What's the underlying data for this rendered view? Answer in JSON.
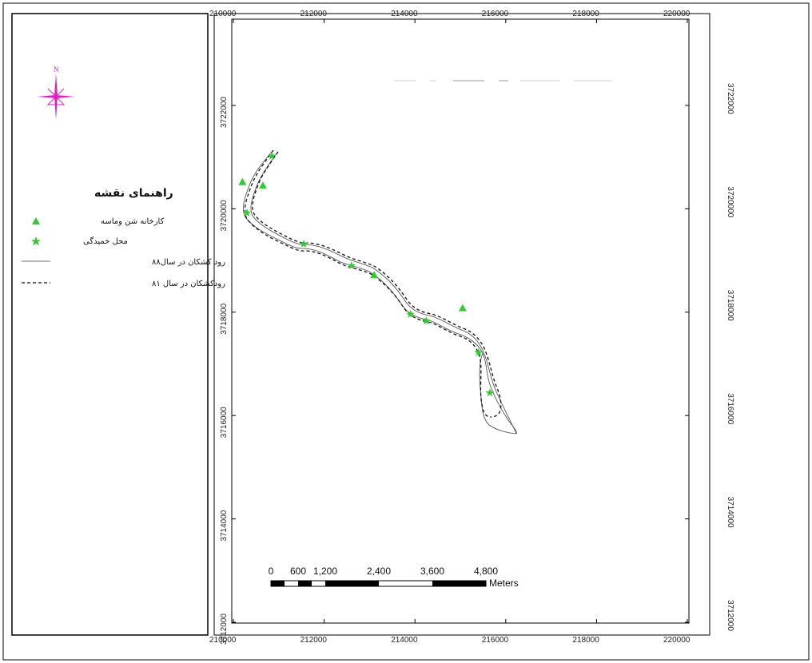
{
  "map": {
    "north_label": "N",
    "legend": {
      "title": "راهنمای نقشه",
      "items": [
        {
          "label": "کارخانه شن وماسه",
          "symbol": "green-triangle"
        },
        {
          "label": "محل خمیدگی",
          "symbol": "green-star"
        },
        {
          "label": "رود کشکان در سال۸۸",
          "symbol": "thin-solid-line"
        },
        {
          "label": "رودکشکان در سال ۸۱",
          "symbol": "dashed-line"
        }
      ]
    },
    "x_axis": {
      "ticks": [
        210000,
        212000,
        214000,
        216000,
        218000,
        220000
      ],
      "labels": [
        "210000",
        "212000",
        "214000",
        "216000",
        "218000",
        "220000"
      ]
    },
    "y_axis": {
      "ticks": [
        3722000,
        3720000,
        3718000,
        3716000,
        3714000,
        3712000
      ],
      "labels": [
        "3722000",
        "3720000",
        "3718000",
        "3716000",
        "3714000",
        "3712000"
      ]
    },
    "scale_bar": {
      "labels": [
        "0",
        "600",
        "1,200",
        "2,400",
        "3,600",
        "4,800"
      ],
      "unit": "Meters"
    },
    "colors": {
      "compass": "#e020c0",
      "marker": "#2ecc2e",
      "river": "#222222"
    },
    "features": {
      "sand_factories": [
        {
          "x": 210200,
          "y": 3720520
        },
        {
          "x": 210650,
          "y": 3720450
        },
        {
          "x": 213100,
          "y": 3718720
        },
        {
          "x": 215050,
          "y": 3718080
        }
      ],
      "bends": [
        {
          "x": 210850,
          "y": 3721020
        },
        {
          "x": 210300,
          "y": 3719920
        },
        {
          "x": 211550,
          "y": 3719320
        },
        {
          "x": 212600,
          "y": 3718900
        },
        {
          "x": 213900,
          "y": 3717960
        },
        {
          "x": 214250,
          "y": 3717830
        },
        {
          "x": 215400,
          "y": 3717220
        },
        {
          "x": 215650,
          "y": 3716440
        }
      ]
    }
  }
}
